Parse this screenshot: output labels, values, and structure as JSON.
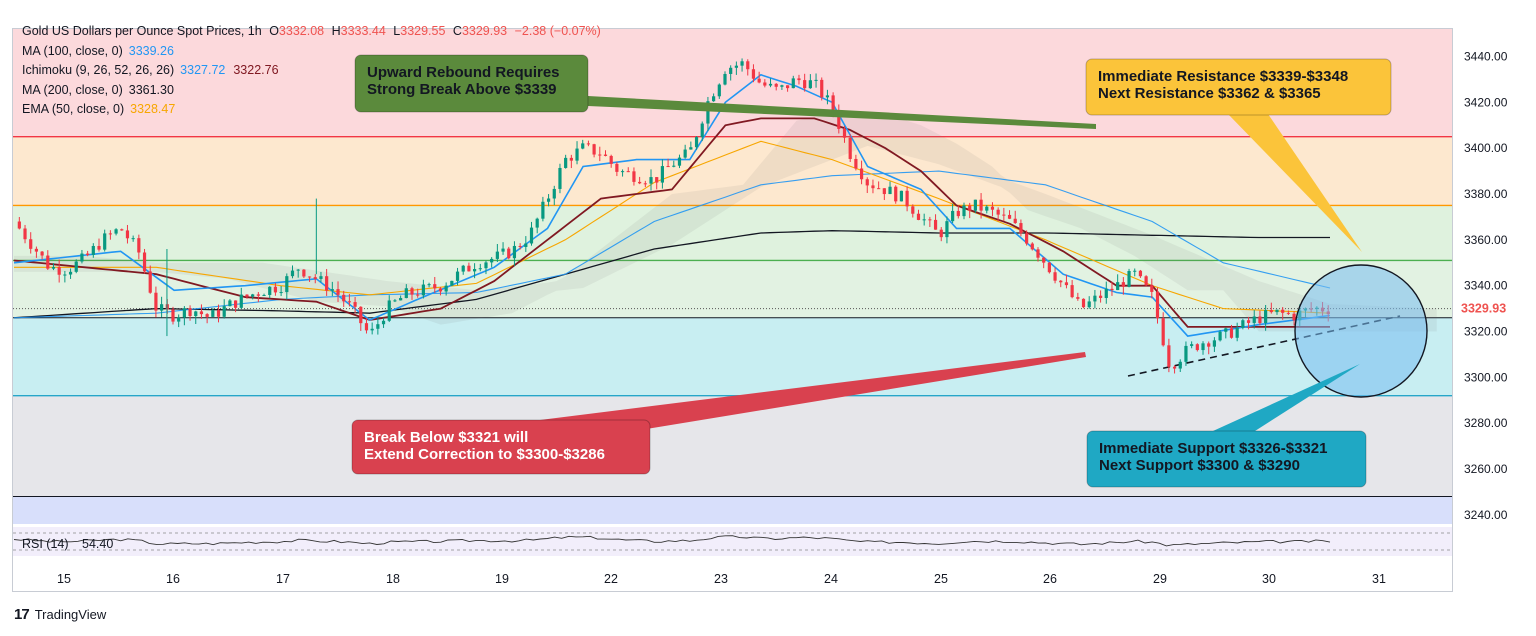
{
  "legend": {
    "symbol": "Gold US Dollars per Ounce Spot Prices, 1h",
    "ohlc": {
      "o_label": "O",
      "o": "3332.08",
      "h_label": "H",
      "h": "3333.44",
      "l_label": "L",
      "l": "3329.55",
      "c_label": "C",
      "c": "3329.93",
      "change": "−2.38 (−0.07%)"
    },
    "ma100": {
      "label": "MA (100, close, 0)",
      "value": "3339.26",
      "color": "#2196f3"
    },
    "ichimoku": {
      "label": "Ichimoku (9, 26, 52, 26, 26)",
      "value1": "3327.72",
      "value2": "3322.76",
      "color1": "#2196f3",
      "color2": "#801922"
    },
    "ma200": {
      "label": "MA (200, close, 0)",
      "value": "3361.30",
      "color": "#131722"
    },
    "ema50": {
      "label": "EMA (50, close, 0)",
      "value": "3328.47",
      "color": "#f7a600"
    }
  },
  "rsi": {
    "label": "RSI (14)",
    "value": "54.40"
  },
  "price_axis": {
    "ticks": [
      "3440.00",
      "3420.00",
      "3400.00",
      "3380.00",
      "3360.00",
      "3340.00",
      "3320.00",
      "3300.00",
      "3280.00",
      "3260.00",
      "3240.00"
    ],
    "current_price": "3329.93",
    "current_price_color": "#ef5350"
  },
  "time_axis": {
    "ticks": [
      "15",
      "16",
      "17",
      "18",
      "19",
      "22",
      "23",
      "24",
      "25",
      "26",
      "29",
      "30",
      "31"
    ]
  },
  "annotations": {
    "green": {
      "line1": "Upward Rebound Requires",
      "line2": "Strong Break Above $3339",
      "color": "#5b8a3c"
    },
    "yellow": {
      "line1": "Immediate Resistance $3339-$3348",
      "line2": "Next Resistance $3362 & $3365",
      "color": "#fbc43a"
    },
    "red": {
      "line1": "Break Below $3321 will",
      "line2": "Extend Correction to $3300-$3286",
      "color": "#d9414f"
    },
    "teal": {
      "line1": "Immediate Support $3326-$3321",
      "line2": "Next Support $3300 & $3290",
      "color": "#1fa8c4"
    }
  },
  "footer": {
    "brand": "TradingView",
    "logo": "tradingview-logo"
  },
  "chart_data": {
    "type": "candlestick",
    "title": "Gold US Dollars per Ounce Spot Prices, 1h",
    "ylim": [
      3236,
      3452
    ],
    "x_ticks": [
      "15",
      "16",
      "17",
      "18",
      "19",
      "22",
      "23",
      "24",
      "25",
      "26",
      "29",
      "30",
      "31"
    ],
    "horizontal_levels": [
      {
        "price": 3405,
        "color": "#f23645"
      },
      {
        "price": 3375,
        "color": "#ff9800"
      },
      {
        "price": 3351,
        "color": "#4caf50"
      },
      {
        "price": 3326,
        "color": "#131722"
      },
      {
        "price": 3292,
        "color": "#26a6c9"
      },
      {
        "price": 3248,
        "color": "#131722"
      }
    ],
    "zones": [
      {
        "from": 3405,
        "to": 3452,
        "color": "#fcd9dc"
      },
      {
        "from": 3375,
        "to": 3405,
        "color": "#fde8cf"
      },
      {
        "from": 3351,
        "to": 3375,
        "color": "#dff2de"
      },
      {
        "from": 3326,
        "to": 3351,
        "color": "#e2f2e2"
      },
      {
        "from": 3292,
        "to": 3326,
        "color": "#c8eef2"
      },
      {
        "from": 3248,
        "to": 3292,
        "color": "#e6e6ea"
      },
      {
        "from": 3236,
        "to": 3248,
        "color": "#d8dffb"
      }
    ],
    "price_path": [
      [
        0.0,
        3368
      ],
      [
        1.0,
        3358
      ],
      [
        2.0,
        3348
      ],
      [
        3.0,
        3347
      ],
      [
        4.0,
        3352
      ],
      [
        5.0,
        3360
      ],
      [
        6.0,
        3365
      ],
      [
        7.0,
        3355
      ],
      [
        8.0,
        3330
      ],
      [
        9.0,
        3327
      ],
      [
        10.0,
        3330
      ],
      [
        11.0,
        3326
      ],
      [
        12.0,
        3331
      ],
      [
        13.0,
        3335
      ],
      [
        14.0,
        3338
      ],
      [
        15.0,
        3340
      ],
      [
        16.0,
        3348
      ],
      [
        17.0,
        3343
      ],
      [
        18.0,
        3338
      ],
      [
        19.0,
        3330
      ],
      [
        20.0,
        3318
      ],
      [
        21.0,
        3330
      ],
      [
        22.0,
        3336
      ],
      [
        23.0,
        3338
      ],
      [
        24.0,
        3340
      ],
      [
        25.0,
        3345
      ],
      [
        26.0,
        3350
      ],
      [
        27.0,
        3352
      ],
      [
        28.0,
        3355
      ],
      [
        29.0,
        3362
      ],
      [
        30.0,
        3378
      ],
      [
        31.0,
        3395
      ],
      [
        32.0,
        3400
      ],
      [
        33.0,
        3398
      ],
      [
        34.0,
        3390
      ],
      [
        35.0,
        3388
      ],
      [
        36.0,
        3386
      ],
      [
        37.0,
        3393
      ],
      [
        38.0,
        3398
      ],
      [
        39.0,
        3420
      ],
      [
        40.0,
        3435
      ],
      [
        41.0,
        3437
      ],
      [
        42.0,
        3428
      ],
      [
        43.0,
        3425
      ],
      [
        44.0,
        3430
      ],
      [
        45.0,
        3428
      ],
      [
        46.0,
        3418
      ],
      [
        47.0,
        3398
      ],
      [
        48.0,
        3385
      ],
      [
        49.0,
        3382
      ],
      [
        50.0,
        3378
      ],
      [
        51.0,
        3370
      ],
      [
        52.0,
        3362
      ],
      [
        53.0,
        3372
      ],
      [
        54.0,
        3375
      ],
      [
        55.0,
        3372
      ],
      [
        56.0,
        3368
      ],
      [
        57.0,
        3360
      ],
      [
        58.0,
        3350
      ],
      [
        59.0,
        3340
      ],
      [
        60.0,
        3330
      ],
      [
        61.0,
        3335
      ],
      [
        62.0,
        3340
      ],
      [
        63.0,
        3345
      ],
      [
        64.0,
        3335
      ],
      [
        65.0,
        3305
      ],
      [
        66.0,
        3312
      ],
      [
        67.0,
        3316
      ],
      [
        68.0,
        3318
      ],
      [
        69.0,
        3322
      ],
      [
        70.0,
        3326
      ],
      [
        71.0,
        3328
      ],
      [
        72.0,
        3327
      ],
      [
        73.0,
        3330
      ],
      [
        74.0,
        3330
      ]
    ],
    "ma200_path": [
      [
        0,
        3326
      ],
      [
        8,
        3330
      ],
      [
        15,
        3329
      ],
      [
        20,
        3328
      ],
      [
        26,
        3334
      ],
      [
        31,
        3345
      ],
      [
        36,
        3356
      ],
      [
        42,
        3363
      ],
      [
        46,
        3364
      ],
      [
        52,
        3363
      ],
      [
        58,
        3363
      ],
      [
        64,
        3362
      ],
      [
        70,
        3361
      ],
      [
        74,
        3361
      ]
    ],
    "ma100_path": [
      [
        0,
        3326
      ],
      [
        8,
        3328
      ],
      [
        15,
        3334
      ],
      [
        20,
        3336
      ],
      [
        26,
        3337
      ],
      [
        31,
        3345
      ],
      [
        36,
        3368
      ],
      [
        42,
        3384
      ],
      [
        46,
        3388
      ],
      [
        52,
        3390
      ],
      [
        58,
        3384
      ],
      [
        64,
        3368
      ],
      [
        68,
        3350
      ],
      [
        74,
        3339
      ]
    ],
    "ema50_path": [
      [
        0,
        3348
      ],
      [
        8,
        3348
      ],
      [
        15,
        3340
      ],
      [
        20,
        3336
      ],
      [
        26,
        3341
      ],
      [
        31,
        3360
      ],
      [
        36,
        3385
      ],
      [
        42,
        3403
      ],
      [
        46,
        3395
      ],
      [
        52,
        3378
      ],
      [
        58,
        3360
      ],
      [
        64,
        3340
      ],
      [
        68,
        3330
      ],
      [
        74,
        3328
      ]
    ],
    "tenkan_path": [
      [
        0,
        3350
      ],
      [
        6,
        3355
      ],
      [
        9,
        3338
      ],
      [
        13,
        3340
      ],
      [
        17,
        3343
      ],
      [
        20,
        3325
      ],
      [
        23,
        3335
      ],
      [
        27,
        3348
      ],
      [
        30,
        3365
      ],
      [
        32,
        3392
      ],
      [
        35,
        3395
      ],
      [
        38,
        3395
      ],
      [
        40,
        3420
      ],
      [
        42,
        3432
      ],
      [
        44,
        3427
      ],
      [
        46,
        3420
      ],
      [
        48,
        3392
      ],
      [
        51,
        3382
      ],
      [
        53,
        3365
      ],
      [
        56,
        3365
      ],
      [
        59,
        3345
      ],
      [
        62,
        3337
      ],
      [
        64,
        3335
      ],
      [
        66,
        3318
      ],
      [
        70,
        3323
      ],
      [
        74,
        3327
      ]
    ],
    "kijun_path": [
      [
        0,
        3351
      ],
      [
        8,
        3345
      ],
      [
        13,
        3335
      ],
      [
        17,
        3333
      ],
      [
        20,
        3325
      ],
      [
        24,
        3330
      ],
      [
        27,
        3342
      ],
      [
        30,
        3360
      ],
      [
        33,
        3378
      ],
      [
        37,
        3382
      ],
      [
        40,
        3410
      ],
      [
        42,
        3413
      ],
      [
        45,
        3413
      ],
      [
        47,
        3408
      ],
      [
        49,
        3400
      ],
      [
        51,
        3390
      ],
      [
        53,
        3375
      ],
      [
        56,
        3367
      ],
      [
        59,
        3355
      ],
      [
        62,
        3340
      ],
      [
        64,
        3340
      ],
      [
        66,
        3322
      ],
      [
        70,
        3322
      ],
      [
        74,
        3322
      ]
    ],
    "rsi": {
      "value": 54.4
    }
  }
}
